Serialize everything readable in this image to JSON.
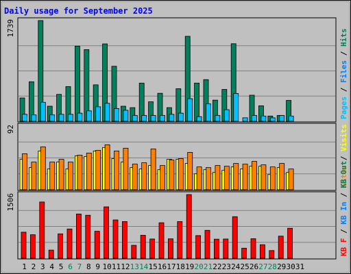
{
  "chart_data": {
    "type": "bar",
    "title": "Daily usage for September 2025",
    "categories": [
      "1",
      "2",
      "3",
      "4",
      "5",
      "6",
      "7",
      "8",
      "9",
      "10",
      "11",
      "12",
      "13",
      "14",
      "15",
      "16",
      "17",
      "18",
      "19",
      "20",
      "21",
      "22",
      "23",
      "24",
      "25",
      "26",
      "27",
      "28",
      "29",
      "30",
      "31"
    ],
    "weekend_days": [
      "6",
      "7",
      "13",
      "14",
      "20",
      "21",
      "27",
      "28"
    ],
    "panels": [
      {
        "id": "hits-files-pages",
        "max_label": "1739",
        "ymax": 1739,
        "right_labels": [
          {
            "text": "Pages",
            "color": "#00c0ff"
          },
          {
            "text": " / ",
            "color": "#000000"
          },
          {
            "text": "Files",
            "color": "#0080ff"
          },
          {
            "text": " / ",
            "color": "#000000"
          },
          {
            "text": "Hits",
            "color": "#00805c"
          }
        ],
        "series": [
          {
            "name": "Hits",
            "color": "#00805c",
            "values": [
              402,
              682,
              1739,
              260,
              464,
              599,
              1297,
              1237,
              629,
              1336,
              950,
              260,
              235,
              659,
              336,
              483,
              235,
              562,
              1467,
              659,
              719,
              365,
              550,
              1339,
              0,
              450,
              267,
              90,
              100,
              360,
              0
            ]
          },
          {
            "name": "Pages",
            "color": "#00c0ff",
            "values": [
              120,
              110,
              328,
              110,
              120,
              120,
              140,
              180,
              250,
              310,
              220,
              190,
              100,
              100,
              100,
              100,
              120,
              140,
              390,
              80,
              300,
              100,
              200,
              480,
              60,
              100,
              90,
              60,
              100,
              90,
              0
            ]
          }
        ]
      },
      {
        "id": "visits-sites",
        "max_label": "92",
        "ymax": 92,
        "right_labels": [
          {
            "text": "Sites",
            "color": "#ff8000"
          },
          {
            "text": " / ",
            "color": "#000000"
          },
          {
            "text": "Visits",
            "color": "#ffff00"
          }
        ],
        "series": [
          {
            "name": "Visits",
            "color": "#ffff00",
            "values": [
              44,
              32,
              56,
              30,
              40,
              30,
              49,
              48,
              56,
              61,
              45,
              40,
              32,
              30,
              35,
              29,
              44,
              44,
              38,
              23,
              29,
              25,
              28,
              33,
              30,
              34,
              34,
              22,
              32,
              25,
              0
            ]
          },
          {
            "name": "Sites",
            "color": "#ff8000",
            "values": [
              52,
              40,
              62,
              40,
              44,
              40,
              50,
              53,
              57,
              65,
              56,
              60,
              37,
              39,
              59,
              35,
              43,
              45,
              54,
              33,
              32,
              35,
              34,
              38,
              37,
              41,
              36,
              33,
              38,
              30,
              0
            ]
          }
        ]
      },
      {
        "id": "kb",
        "max_label": "1506",
        "ymax": 1506,
        "right_labels": [
          {
            "text": "KB F",
            "color": "#ff0000"
          },
          {
            "text": " / ",
            "color": "#000000"
          },
          {
            "text": "KB In",
            "color": "#0080ff"
          },
          {
            "text": " / ",
            "color": "#000000"
          },
          {
            "text": "KB Out",
            "color": "#00805c"
          }
        ],
        "series": [
          {
            "name": "KB F",
            "color": "#ff0000",
            "values": [
              617,
              556,
              1330,
              193,
              577,
              692,
              1047,
              1017,
              638,
              1215,
              906,
              867,
              306,
              543,
              455,
              840,
              459,
              867,
              1506,
              536,
              660,
              451,
              455,
              983,
              238,
              462,
              320,
              182,
              523,
              709,
              0
            ]
          }
        ]
      }
    ]
  }
}
